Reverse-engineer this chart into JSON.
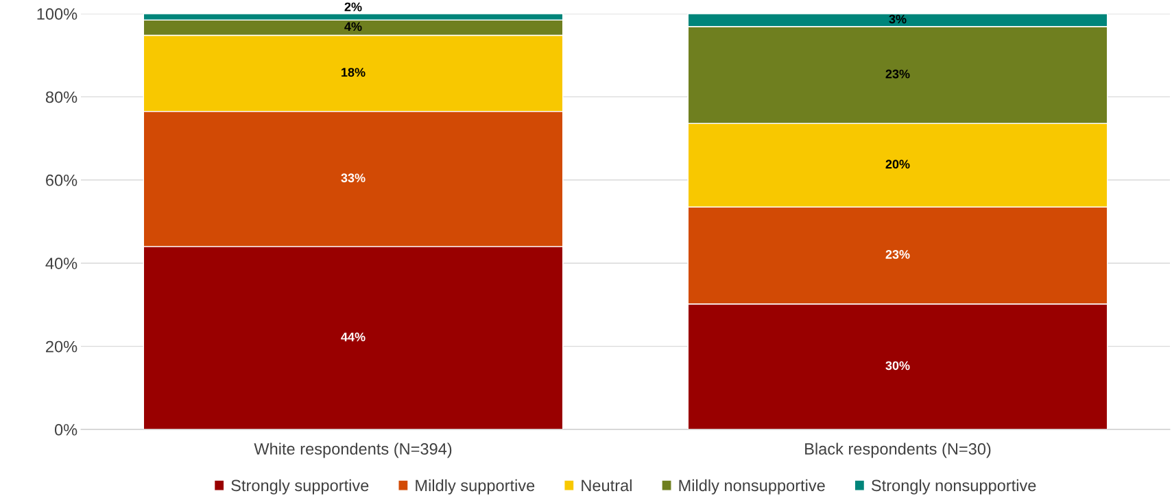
{
  "chart_data": {
    "type": "bar",
    "stacked": true,
    "categories": [
      "White respondents (N=394)",
      "Black respondents (N=30)"
    ],
    "series": [
      {
        "name": "Strongly supportive",
        "color": "#990000",
        "values": [
          44.0,
          30.2
        ],
        "value_labels": [
          "44%",
          "30%"
        ]
      },
      {
        "name": "Mildly supportive",
        "color": "#d24a05",
        "values": [
          32.5,
          23.3
        ],
        "value_labels": [
          "33%",
          "23%"
        ]
      },
      {
        "name": "Neutral",
        "color": "#f8c800",
        "values": [
          18.3,
          20.1
        ],
        "value_labels": [
          "18%",
          "20%"
        ]
      },
      {
        "name": "Mildly nonsupportive",
        "color": "#6f7f1f",
        "values": [
          3.7,
          23.3
        ],
        "value_labels": [
          "4%",
          "23%"
        ]
      },
      {
        "name": "Strongly nonsupportive",
        "color": "#00857a",
        "values": [
          1.5,
          3.1
        ],
        "value_labels": [
          "2%",
          "3%"
        ]
      }
    ],
    "ylim": [
      0,
      100
    ],
    "yticks": [
      {
        "value": 0,
        "label": "0%"
      },
      {
        "value": 20,
        "label": "20%"
      },
      {
        "value": 40,
        "label": "40%"
      },
      {
        "value": 60,
        "label": "60%"
      },
      {
        "value": 80,
        "label": "80%"
      },
      {
        "value": 100,
        "label": "100%"
      }
    ],
    "grid": "y",
    "legend": "bottom"
  }
}
